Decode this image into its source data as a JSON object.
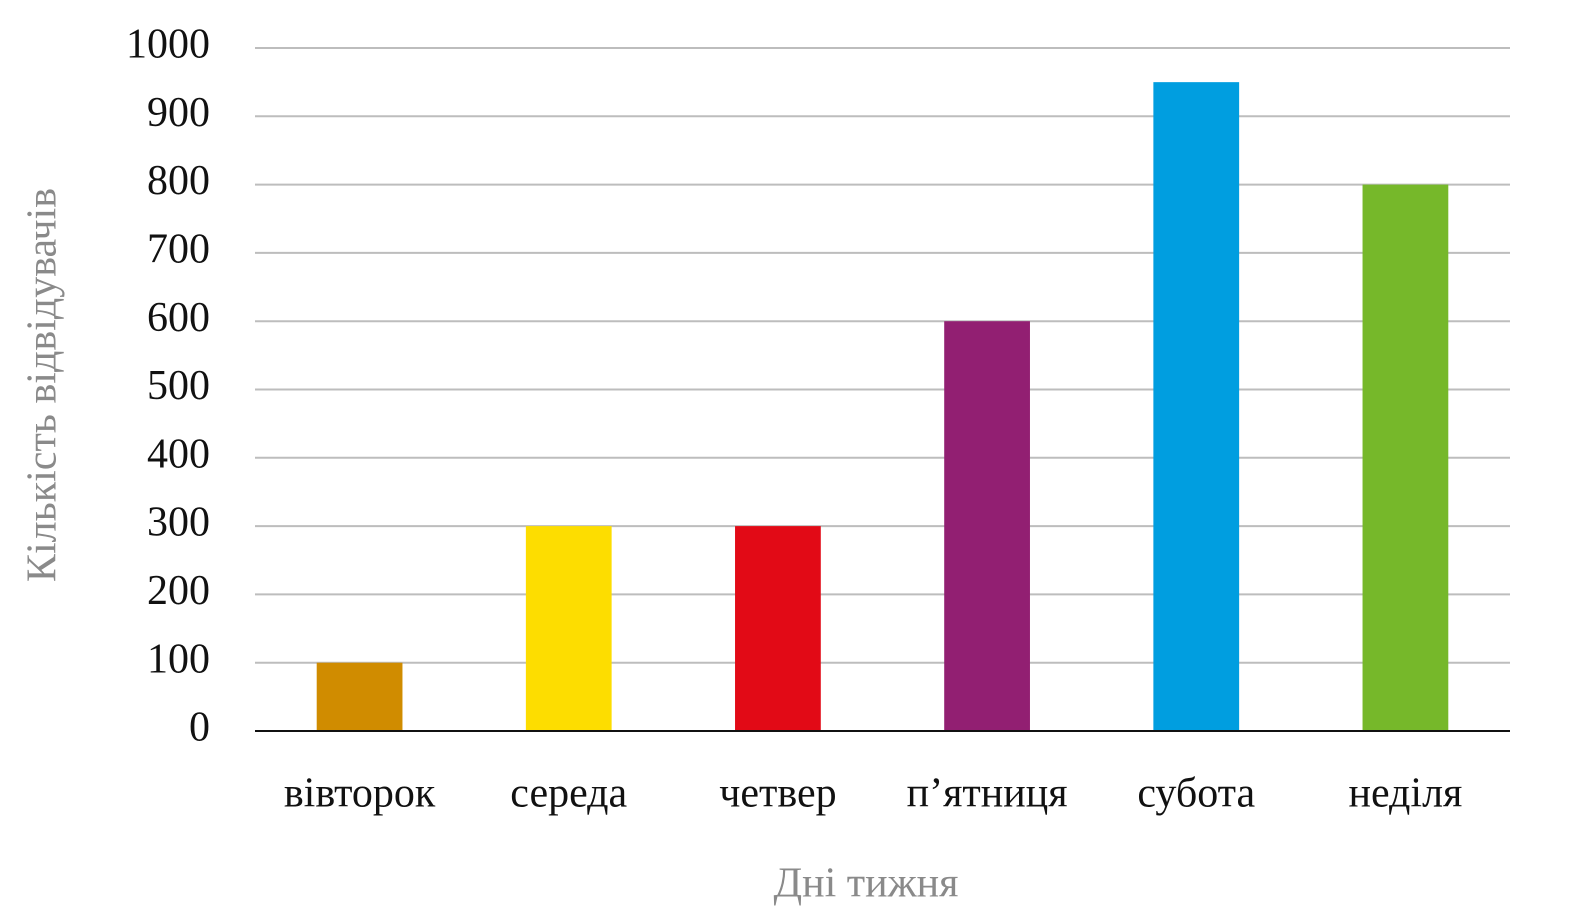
{
  "chart_data": {
    "type": "bar",
    "x_label": "Дні тижня",
    "y_label": "Кількість відвідувачів",
    "categories": [
      "вівторок",
      "середа",
      "четвер",
      "п’ятниця",
      "субота",
      "неділя"
    ],
    "values": [
      100,
      300,
      300,
      600,
      950,
      800
    ],
    "colors": [
      "#d08c00",
      "#fddd00",
      "#e20a16",
      "#921f72",
      "#009ee0",
      "#76b82a"
    ],
    "ylim": [
      0,
      1000
    ],
    "yticks": [
      0,
      100,
      200,
      300,
      400,
      500,
      600,
      700,
      800,
      900,
      1000
    ],
    "grid": true
  }
}
